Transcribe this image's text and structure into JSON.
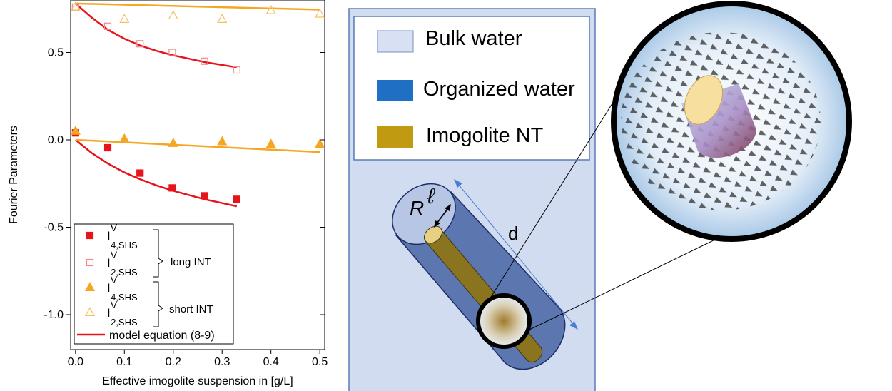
{
  "chart_data": {
    "type": "scatter",
    "title": "",
    "xlabel": "Effective imogolite suspension in [g/L]",
    "ylabel": "Fourier Parameters",
    "xlim": [
      -0.01,
      0.51
    ],
    "ylim": [
      -1.2,
      0.8
    ],
    "x_ticks": [
      0.0,
      0.1,
      0.2,
      0.3,
      0.4,
      0.5
    ],
    "x_tick_labels": [
      "0.0",
      "0.1",
      "0.2",
      "0.3",
      "0.4",
      "0.5"
    ],
    "y_ticks": [
      0.5,
      0.0,
      -0.5,
      -1.0
    ],
    "y_tick_labels": [
      "0.5",
      "0.0",
      "-0.5",
      "-1.0"
    ],
    "grid": false,
    "legend_position": "bottom-left",
    "series": [
      {
        "name_main": "I",
        "name_sup": "V",
        "name_sub": "4,SHS",
        "marker": "square-filled",
        "color": "#e8141c",
        "x": [
          0.0,
          0.066,
          0.132,
          0.198,
          0.264,
          0.33
        ],
        "y": [
          0.04,
          -0.045,
          -0.19,
          -0.275,
          -0.32,
          -0.34
        ]
      },
      {
        "name_main": "I",
        "name_sup": "V",
        "name_sub": "2,SHS",
        "marker": "square-open",
        "color": "#f08a8a",
        "x": [
          0.0,
          0.066,
          0.132,
          0.198,
          0.264,
          0.33
        ],
        "y": [
          0.76,
          0.65,
          0.55,
          0.5,
          0.45,
          0.4
        ]
      },
      {
        "name_main": "I",
        "name_sup": "V",
        "name_sub": "4,SHS",
        "marker": "triangle-filled",
        "color": "#f5a623",
        "x": [
          0.0,
          0.1,
          0.2,
          0.3,
          0.4,
          0.5
        ],
        "y": [
          0.05,
          0.005,
          -0.02,
          -0.01,
          -0.025,
          -0.025
        ]
      },
      {
        "name_main": "I",
        "name_sup": "V",
        "name_sub": "2,SHS",
        "marker": "triangle-open",
        "color": "#f5c060",
        "x": [
          0.0,
          0.1,
          0.2,
          0.3,
          0.4,
          0.5
        ],
        "y": [
          0.76,
          0.69,
          0.71,
          0.69,
          0.74,
          0.72
        ]
      }
    ],
    "model_curves": [
      {
        "color": "#e8141c",
        "x": [
          0.0,
          0.033,
          0.066,
          0.099,
          0.132,
          0.165,
          0.198,
          0.231,
          0.264,
          0.297,
          0.33
        ],
        "y": [
          0.78,
          0.7,
          0.63,
          0.58,
          0.54,
          0.51,
          0.485,
          0.465,
          0.445,
          0.43,
          0.415
        ]
      },
      {
        "color": "#e8141c",
        "x": [
          0.0,
          0.033,
          0.066,
          0.099,
          0.132,
          0.165,
          0.198,
          0.231,
          0.264,
          0.297,
          0.33
        ],
        "y": [
          0.0,
          -0.075,
          -0.135,
          -0.185,
          -0.225,
          -0.26,
          -0.29,
          -0.315,
          -0.34,
          -0.36,
          -0.38
        ]
      },
      {
        "color": "#f5a623",
        "x": [
          0.0,
          0.5
        ],
        "y": [
          0.78,
          0.745
        ]
      },
      {
        "color": "#f5a623",
        "x": [
          0.0,
          0.5
        ],
        "y": [
          0.0,
          -0.07
        ]
      }
    ],
    "legend": {
      "group_labels": [
        "long INT",
        "short INT"
      ],
      "line_label": "model equation (8-9)"
    }
  },
  "schematic": {
    "legend_items": [
      {
        "label": "Bulk water",
        "color": "#d8e1f3"
      },
      {
        "label": "Organized water",
        "color": "#1f6fc4"
      },
      {
        "label": "Imogolite NT",
        "color": "#c09a10"
      }
    ],
    "labels": {
      "radius": "R",
      "thickness": "ℓ",
      "distance": "d"
    },
    "colors": {
      "panel_bg": "#d2dcf0",
      "panel_border": "#5b7bb5",
      "cylinder_fill": "#4f6aa8",
      "arrow_blue": "#4a7fd0",
      "zoom_border": "#000000"
    }
  }
}
